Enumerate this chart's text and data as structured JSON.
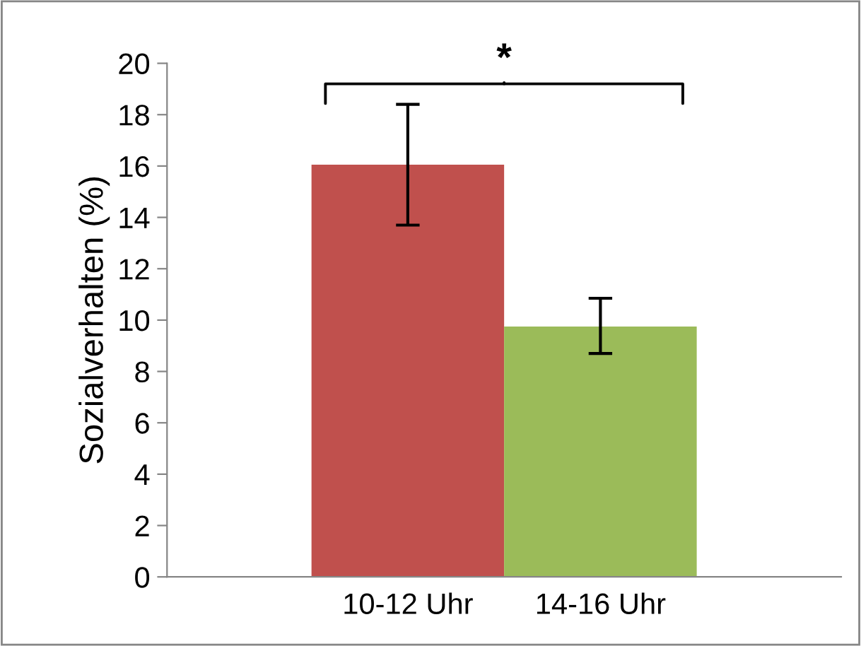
{
  "chart_data": {
    "type": "bar",
    "ylabel": "Sozialverhalten (%)",
    "categories": [
      "10-12 Uhr",
      "14-16 Uhr"
    ],
    "values": [
      16.05,
      9.75
    ],
    "colors": [
      "#c0504d",
      "#9bbb59"
    ],
    "errors": [
      [
        13.7,
        18.4
      ],
      [
        8.7,
        10.85
      ]
    ],
    "ylim": [
      0,
      20
    ],
    "yticks": [
      0,
      2,
      4,
      6,
      8,
      10,
      12,
      14,
      16,
      18,
      20
    ],
    "grid": false,
    "legend": false,
    "annotations": [
      "*"
    ]
  }
}
